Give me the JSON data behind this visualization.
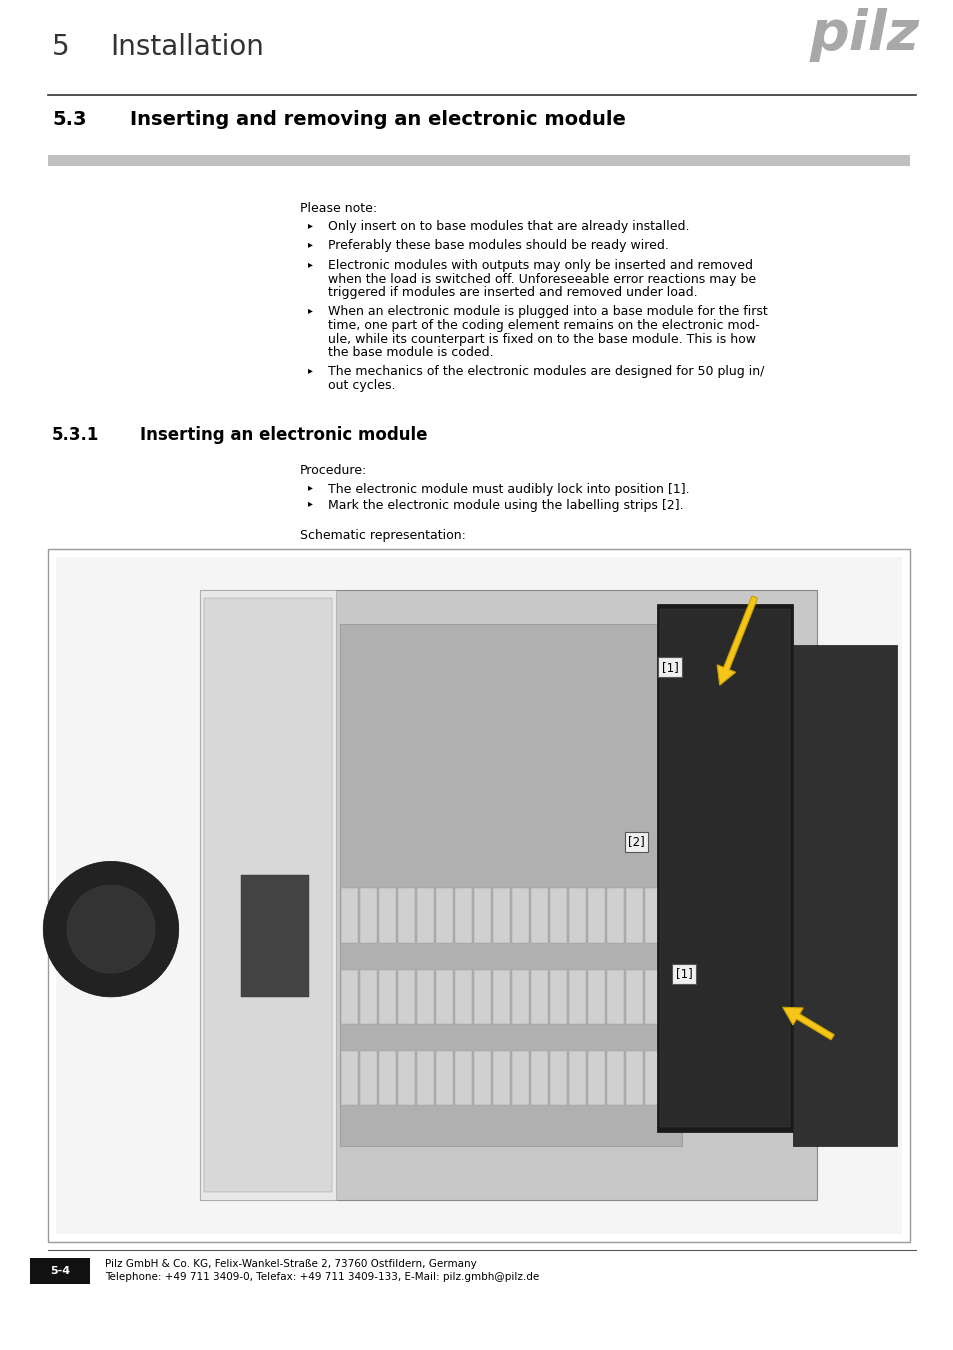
{
  "page_bg": "#ffffff",
  "header_number": "5",
  "header_title": "Installation",
  "logo_text": "pilz",
  "logo_color": "#a8a8a8",
  "section_number": "5.3",
  "section_title": "Inserting and removing an electronic module",
  "gray_bar_color": "#c0c0c0",
  "note_header": "Please note:",
  "bullets": [
    "Only insert on to base modules that are already installed.",
    "Preferably these base modules should be ready wired.",
    "Electronic modules with outputs may only be inserted and removed\nwhen the load is switched off. Unforeseeable error reactions may be\ntriggered if modules are inserted and removed under load.",
    "When an electronic module is plugged into a base module for the first\ntime, one part of the coding element remains on the electronic mod-\nule, while its counterpart is fixed on to the base module. This is how\nthe base module is coded.",
    "The mechanics of the electronic modules are designed for 50 plug in/\nout cycles."
  ],
  "subsection_number": "5.3.1",
  "subsection_title": "Inserting an electronic module",
  "procedure_header": "Procedure:",
  "procedure_bullets": [
    "The electronic module must audibly lock into position [1].",
    "Mark the electronic module using the labelling strips [2]."
  ],
  "schematic_label": "Schematic representation:",
  "footer_page": "5-4",
  "footer_company": "Pilz GmbH & Co. KG, Felix-Wankel-Straße 2, 73760 Ostfildern, Germany",
  "footer_contact": "Telephone: +49 711 3409-0, Telefax: +49 711 3409-133, E-Mail: pilz.gmbh@pilz.de"
}
